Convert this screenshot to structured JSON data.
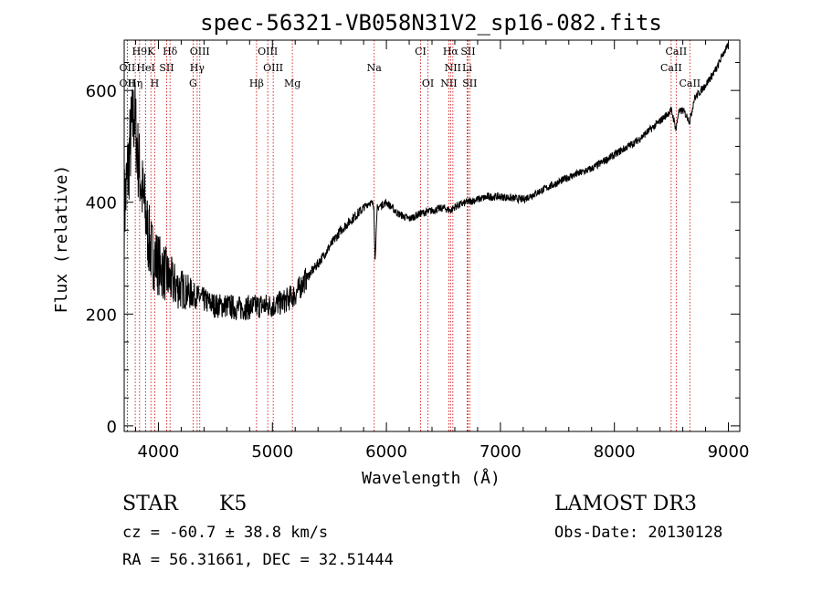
{
  "chart_data": {
    "type": "line",
    "title": "spec-56321-VB058N31V2_sp16-082.fits",
    "xlabel": "Wavelength (Å)",
    "ylabel": "Flux (relative)",
    "xlim": [
      3700,
      9100
    ],
    "ylim": [
      -10,
      690
    ],
    "x_ticks": [
      4000,
      5000,
      6000,
      7000,
      8000,
      9000
    ],
    "y_ticks": [
      0,
      200,
      400,
      600
    ],
    "x_tick_labels": [
      "4000",
      "5000",
      "6000",
      "7000",
      "8000",
      "9000"
    ],
    "y_tick_labels": [
      "0",
      "200",
      "400",
      "600"
    ],
    "series": [
      {
        "name": "spectrum",
        "x": [
          3700,
          3730,
          3760,
          3790,
          3820,
          3850,
          3880,
          3910,
          3940,
          3970,
          4000,
          4050,
          4100,
          4150,
          4200,
          4250,
          4300,
          4350,
          4400,
          4500,
          4600,
          4700,
          4800,
          4900,
          5000,
          5100,
          5200,
          5300,
          5400,
          5500,
          5600,
          5700,
          5800,
          5850,
          5890,
          5900,
          5920,
          6000,
          6100,
          6200,
          6300,
          6400,
          6500,
          6563,
          6600,
          6700,
          6800,
          6900,
          7000,
          7200,
          7400,
          7600,
          7800,
          8000,
          8200,
          8400,
          8500,
          8542,
          8560,
          8600,
          8662,
          8700,
          8800,
          8900,
          8950,
          9000
        ],
        "values": [
          380,
          450,
          520,
          560,
          480,
          430,
          390,
          340,
          310,
          300,
          290,
          275,
          260,
          250,
          245,
          240,
          235,
          230,
          225,
          215,
          215,
          210,
          212,
          215,
          215,
          222,
          235,
          265,
          290,
          320,
          350,
          370,
          390,
          400,
          395,
          295,
          390,
          400,
          380,
          370,
          380,
          385,
          390,
          385,
          392,
          400,
          405,
          410,
          410,
          405,
          425,
          445,
          460,
          485,
          510,
          545,
          565,
          530,
          560,
          565,
          545,
          585,
          610,
          640,
          665,
          680
        ]
      }
    ],
    "lines": [
      {
        "name": "H9",
        "x": 3835,
        "row": 1
      },
      {
        "name": "K",
        "x": 3934,
        "row": 1
      },
      {
        "name": "Hδ",
        "x": 4102,
        "row": 1
      },
      {
        "name": "OIII",
        "x": 4363,
        "row": 1
      },
      {
        "name": "OIII",
        "x": 4959,
        "row": 1
      },
      {
        "name": "CI",
        "x": 6300,
        "row": 1
      },
      {
        "name": "Hα",
        "x": 6563,
        "row": 1
      },
      {
        "name": "SII",
        "x": 6716,
        "row": 1
      },
      {
        "name": "CaII",
        "x": 8542,
        "row": 1
      },
      {
        "name": "OII",
        "x": 3727,
        "row": 2
      },
      {
        "name": "HeI",
        "x": 3889,
        "row": 2
      },
      {
        "name": "SII",
        "x": 4072,
        "row": 2
      },
      {
        "name": "Hγ",
        "x": 4340,
        "row": 2
      },
      {
        "name": "OIII",
        "x": 5007,
        "row": 2
      },
      {
        "name": "Na",
        "x": 5893,
        "row": 2
      },
      {
        "name": "NII",
        "x": 6583,
        "row": 2
      },
      {
        "name": "Li",
        "x": 6708,
        "row": 2
      },
      {
        "name": "CaII",
        "x": 8498,
        "row": 2
      },
      {
        "name": "OII",
        "x": 3727,
        "row": 3
      },
      {
        "name": "Hη",
        "x": 3797,
        "row": 3
      },
      {
        "name": "H",
        "x": 3968,
        "row": 3
      },
      {
        "name": "G",
        "x": 4304,
        "row": 3
      },
      {
        "name": "Hβ",
        "x": 4861,
        "row": 3
      },
      {
        "name": "Mg",
        "x": 5175,
        "row": 3
      },
      {
        "name": "OI",
        "x": 6364,
        "row": 3
      },
      {
        "name": "NII",
        "x": 6548,
        "row": 3
      },
      {
        "name": "SII",
        "x": 6731,
        "row": 3
      },
      {
        "name": "CaII",
        "x": 8662,
        "row": 3
      }
    ]
  },
  "info": {
    "object_class": "STAR",
    "subclass": "K5",
    "survey": "LAMOST DR3",
    "redshift": "cz = -60.7 ± 38.8 km/s",
    "obs_date": "Obs-Date: 20130128",
    "coords": "RA =  56.31661, DEC =  32.51444"
  },
  "colors": {
    "spectrum": "#000000",
    "line_marker": "#cc0000",
    "axis": "#000000"
  }
}
